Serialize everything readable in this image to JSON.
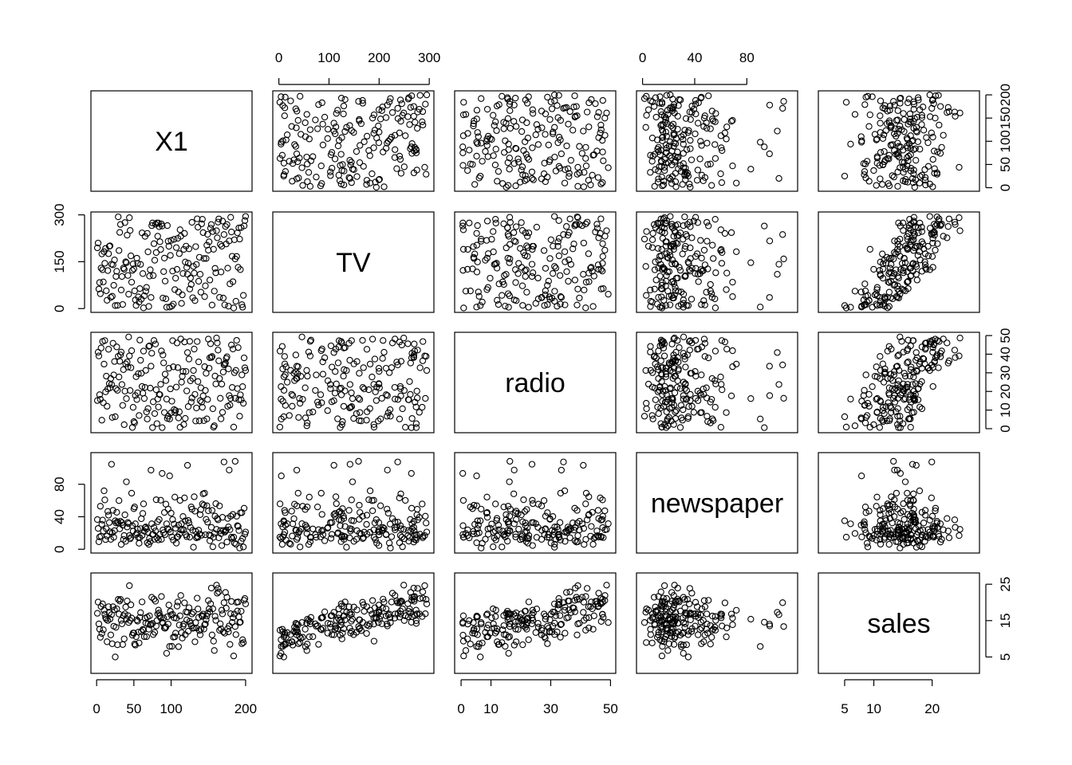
{
  "chart_data": {
    "type": "scatter",
    "subtype": "scatterplot-matrix",
    "title": "",
    "variables": [
      "X1",
      "TV",
      "radio",
      "newspaper",
      "sales"
    ],
    "ranges": {
      "X1": [
        1,
        200
      ],
      "TV": [
        0.7,
        296.4
      ],
      "radio": [
        0,
        49.6
      ],
      "newspaper": [
        0.3,
        114
      ],
      "sales": [
        1.6,
        27
      ]
    },
    "ticks": {
      "X1": [
        0,
        50,
        100,
        200
      ],
      "TV": [
        0,
        100,
        200,
        300
      ],
      "radio": [
        0,
        10,
        30,
        50
      ],
      "newspaper": [
        0,
        40,
        80
      ],
      "sales": [
        5,
        10,
        20
      ]
    },
    "ticks_side": {
      "X1": [
        0,
        50,
        100,
        150,
        200
      ],
      "TV": [
        0,
        150,
        300
      ],
      "radio": [
        0,
        10,
        20,
        30,
        40,
        50
      ],
      "newspaper": [
        0,
        40,
        80
      ],
      "sales": [
        5,
        15,
        25
      ]
    },
    "marker": "open-circle",
    "n_observations": 200,
    "grid": false,
    "legend": "none",
    "relationships": "sales increases with TV (concave) and with radio; newspaper weakly related; X1 is an observation index with no relationship"
  }
}
